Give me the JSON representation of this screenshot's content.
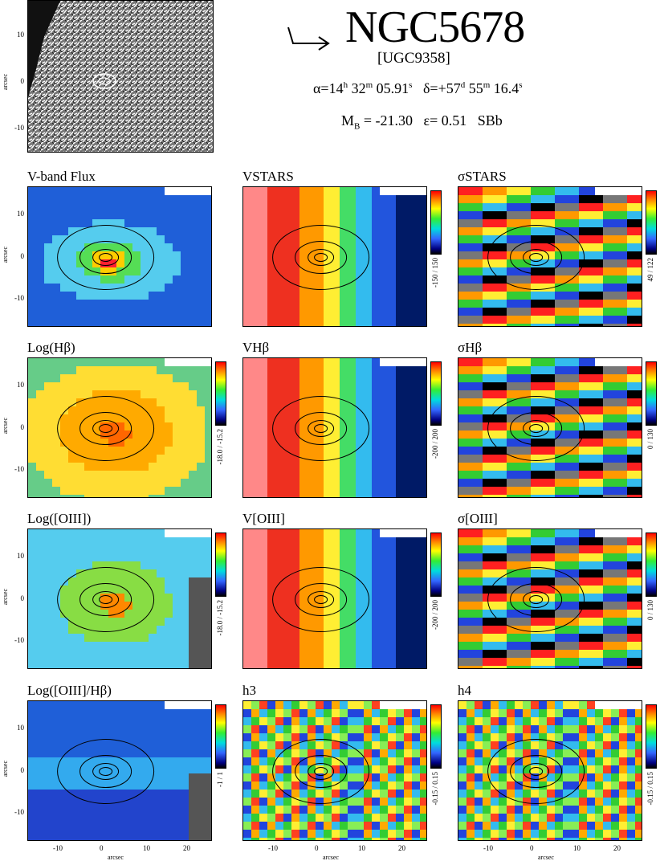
{
  "header": {
    "galaxy_name": "NGC5678",
    "alt_name": "[UGC9358]",
    "ra": {
      "prefix": "α=14",
      "h": "h",
      "mid": " 32",
      "m": "m",
      "end": " 05.91",
      "s": "s"
    },
    "dec": {
      "prefix": "δ=+57",
      "d": "d",
      "mid": " 55",
      "m": "m",
      "end": " 16.4",
      "s": "s"
    },
    "mag": {
      "m": "M",
      "sub": "B",
      "value": " = -21.30",
      "eps": "ε= 0.51",
      "type": "SBb"
    }
  },
  "axes": {
    "y_label": "arcsec",
    "x_label": "arcsec",
    "y_ticks": [
      "10",
      "0",
      "-10"
    ],
    "x_ticks": [
      "-10",
      "0",
      "10",
      "20"
    ]
  },
  "panels": [
    {
      "id": "vband",
      "title": "V-band Flux",
      "range": "",
      "scheme": "flux"
    },
    {
      "id": "vstars",
      "title": "VSTARS",
      "range": "-150 / 150",
      "scheme": "velocity"
    },
    {
      "id": "sstars",
      "title": "σSTARS",
      "range": "49 / 122",
      "scheme": "noisy"
    },
    {
      "id": "loghb",
      "title": "Log(Hβ)",
      "range": "-18.0 / -15.2",
      "scheme": "warm"
    },
    {
      "id": "vhb",
      "title": "VHβ",
      "range": "-200 / 200",
      "scheme": "velocity"
    },
    {
      "id": "shb",
      "title": "σHβ",
      "range": "0 / 130",
      "scheme": "noisy"
    },
    {
      "id": "logoiii",
      "title": "Log([OIII])",
      "range": "-18.0 / -15.2",
      "scheme": "green"
    },
    {
      "id": "voiii",
      "title": "V[OIII]",
      "range": "-200 / 200",
      "scheme": "velocity"
    },
    {
      "id": "soiii",
      "title": "σ[OIII]",
      "range": "0 / 130",
      "scheme": "noisy"
    },
    {
      "id": "ratio",
      "title": "Log([OIII]/Hβ)",
      "range": "-1 / 1",
      "scheme": "cool"
    },
    {
      "id": "h3",
      "title": "h3",
      "range": "-0.15 / 0.15",
      "scheme": "noisy2"
    },
    {
      "id": "h4",
      "title": "h4",
      "range": "-0.15 / 0.15",
      "scheme": "noisy2"
    }
  ]
}
